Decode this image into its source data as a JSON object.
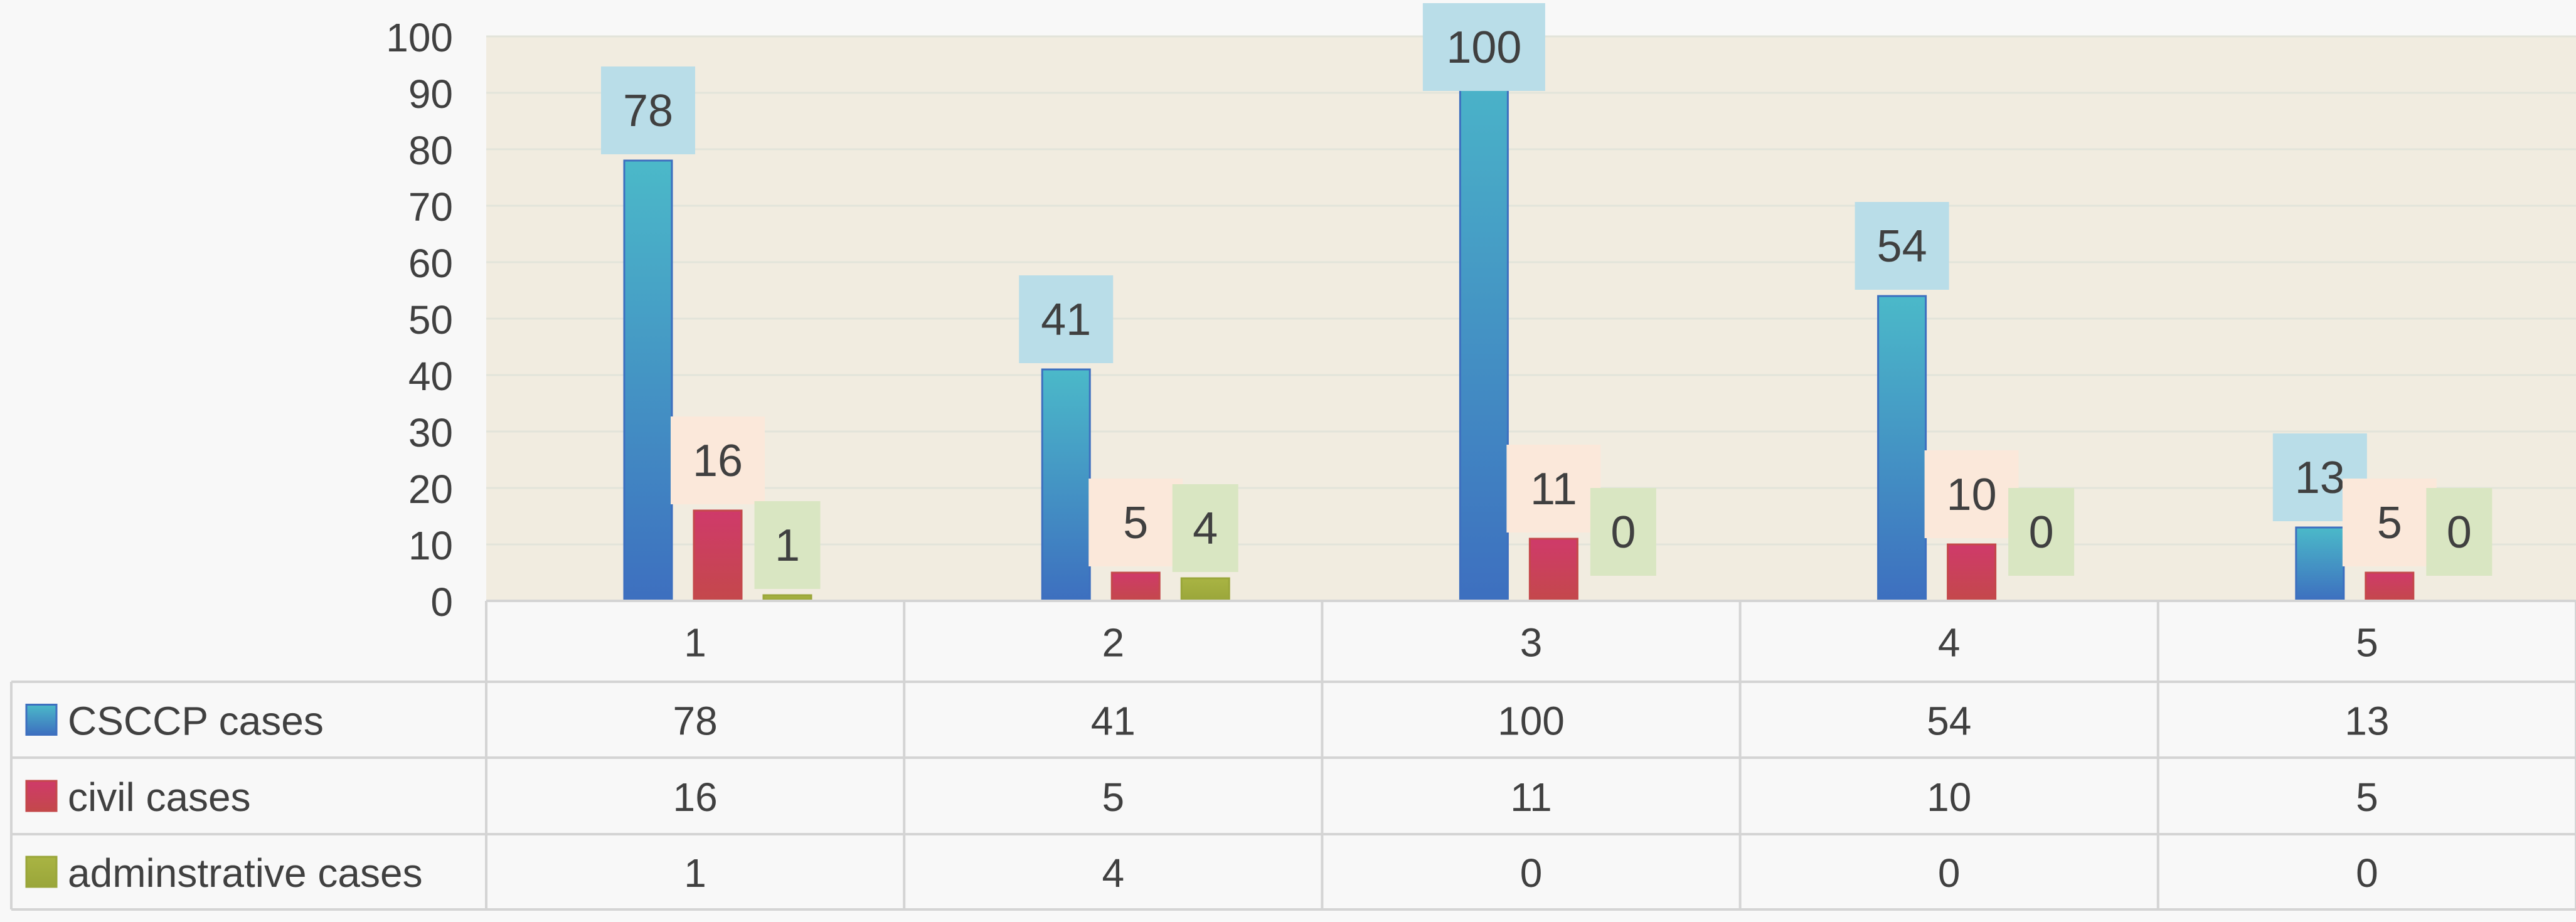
{
  "chart_data": {
    "type": "bar",
    "title": "",
    "xlabel": "",
    "ylabel": "",
    "categories": [
      "1",
      "2",
      "3",
      "4",
      "5"
    ],
    "ylim": [
      0,
      100
    ],
    "yticks": [
      "0",
      "10",
      "20",
      "30",
      "40",
      "50",
      "60",
      "70",
      "80",
      "90",
      "100"
    ],
    "grid": true,
    "legend": "data-table-left",
    "series": [
      {
        "name": "CSCCP cases",
        "values": [
          78,
          41,
          100,
          54,
          13
        ],
        "color_top": "#4bb9c9",
        "color_bottom": "#3d6fbf",
        "label_bg": "#b9dde8"
      },
      {
        "name": "civil cases",
        "values": [
          16,
          5,
          11,
          10,
          5
        ],
        "color_top": "#cf3a6a",
        "color_bottom": "#c4484b",
        "label_bg": "#fbe8da"
      },
      {
        "name": "adminstrative cases",
        "values": [
          1,
          4,
          0,
          0,
          0
        ],
        "color_top": "#a9b443",
        "color_bottom": "#9aa63a",
        "label_bg": "#d9e6c2"
      }
    ],
    "colors": {
      "plot_bg": "#f1ece0",
      "page_bg": "#f8f8f8",
      "grid": "#e2e4da",
      "table_border": "#d4d4d4",
      "text": "#404040"
    }
  }
}
